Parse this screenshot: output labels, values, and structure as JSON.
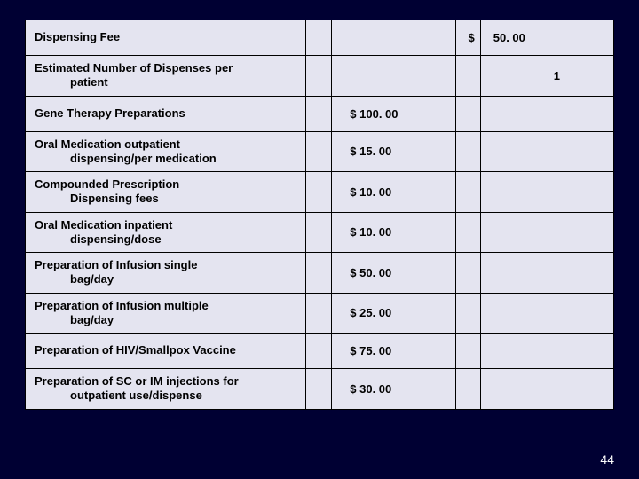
{
  "colors": {
    "slide_bg": "#000033",
    "table_bg": "#e4e4f0",
    "border": "#000000",
    "text": "#000000",
    "page_num": "#ffffff"
  },
  "page_number": "44",
  "currency": "$",
  "rows": [
    {
      "label_line1": "Dispensing Fee",
      "label_line2": "",
      "col3_cur": "",
      "col3_val": "",
      "col4_cur": "$",
      "col5_val": "50. 00",
      "col5_align": "left"
    },
    {
      "label_line1": "Estimated Number of Dispenses per",
      "label_line2": "patient",
      "col3_cur": "",
      "col3_val": "",
      "col4_cur": "",
      "col5_val": "1",
      "col5_align": "right"
    },
    {
      "label_line1": "Gene Therapy Preparations",
      "label_line2": "",
      "col3_cur": "$",
      "col3_val": "100. 00",
      "col4_cur": "",
      "col5_val": "",
      "col5_align": "left"
    },
    {
      "label_line1": "Oral Medication outpatient",
      "label_line2": "dispensing/per medication",
      "col3_cur": "$",
      "col3_val": "15. 00",
      "col4_cur": "",
      "col5_val": "",
      "col5_align": "left"
    },
    {
      "label_line1": "Compounded Prescription",
      "label_line2": "Dispensing fees",
      "col3_cur": "$",
      "col3_val": "10. 00",
      "col4_cur": "",
      "col5_val": "",
      "col5_align": "left"
    },
    {
      "label_line1": "Oral Medication inpatient",
      "label_line2": "dispensing/dose",
      "col3_cur": "$",
      "col3_val": "10. 00",
      "col4_cur": "",
      "col5_val": "",
      "col5_align": "left"
    },
    {
      "label_line1": "Preparation of Infusion single",
      "label_line2": "bag/day",
      "col3_cur": "$",
      "col3_val": "50. 00",
      "col4_cur": "",
      "col5_val": "",
      "col5_align": "left"
    },
    {
      "label_line1": "Preparation of Infusion multiple",
      "label_line2": "bag/day",
      "col3_cur": "$",
      "col3_val": "25. 00",
      "col4_cur": "",
      "col5_val": "",
      "col5_align": "left"
    },
    {
      "label_line1": "Preparation of HIV/Smallpox Vaccine",
      "label_line2": "",
      "col3_cur": "$",
      "col3_val": "75. 00",
      "col4_cur": "",
      "col5_val": "",
      "col5_align": "left"
    },
    {
      "label_line1": "Preparation of SC or IM injections for",
      "label_line2": "outpatient use/dispense",
      "col3_cur": "$",
      "col3_val": "30. 00",
      "col4_cur": "",
      "col5_val": "",
      "col5_align": "left"
    }
  ]
}
